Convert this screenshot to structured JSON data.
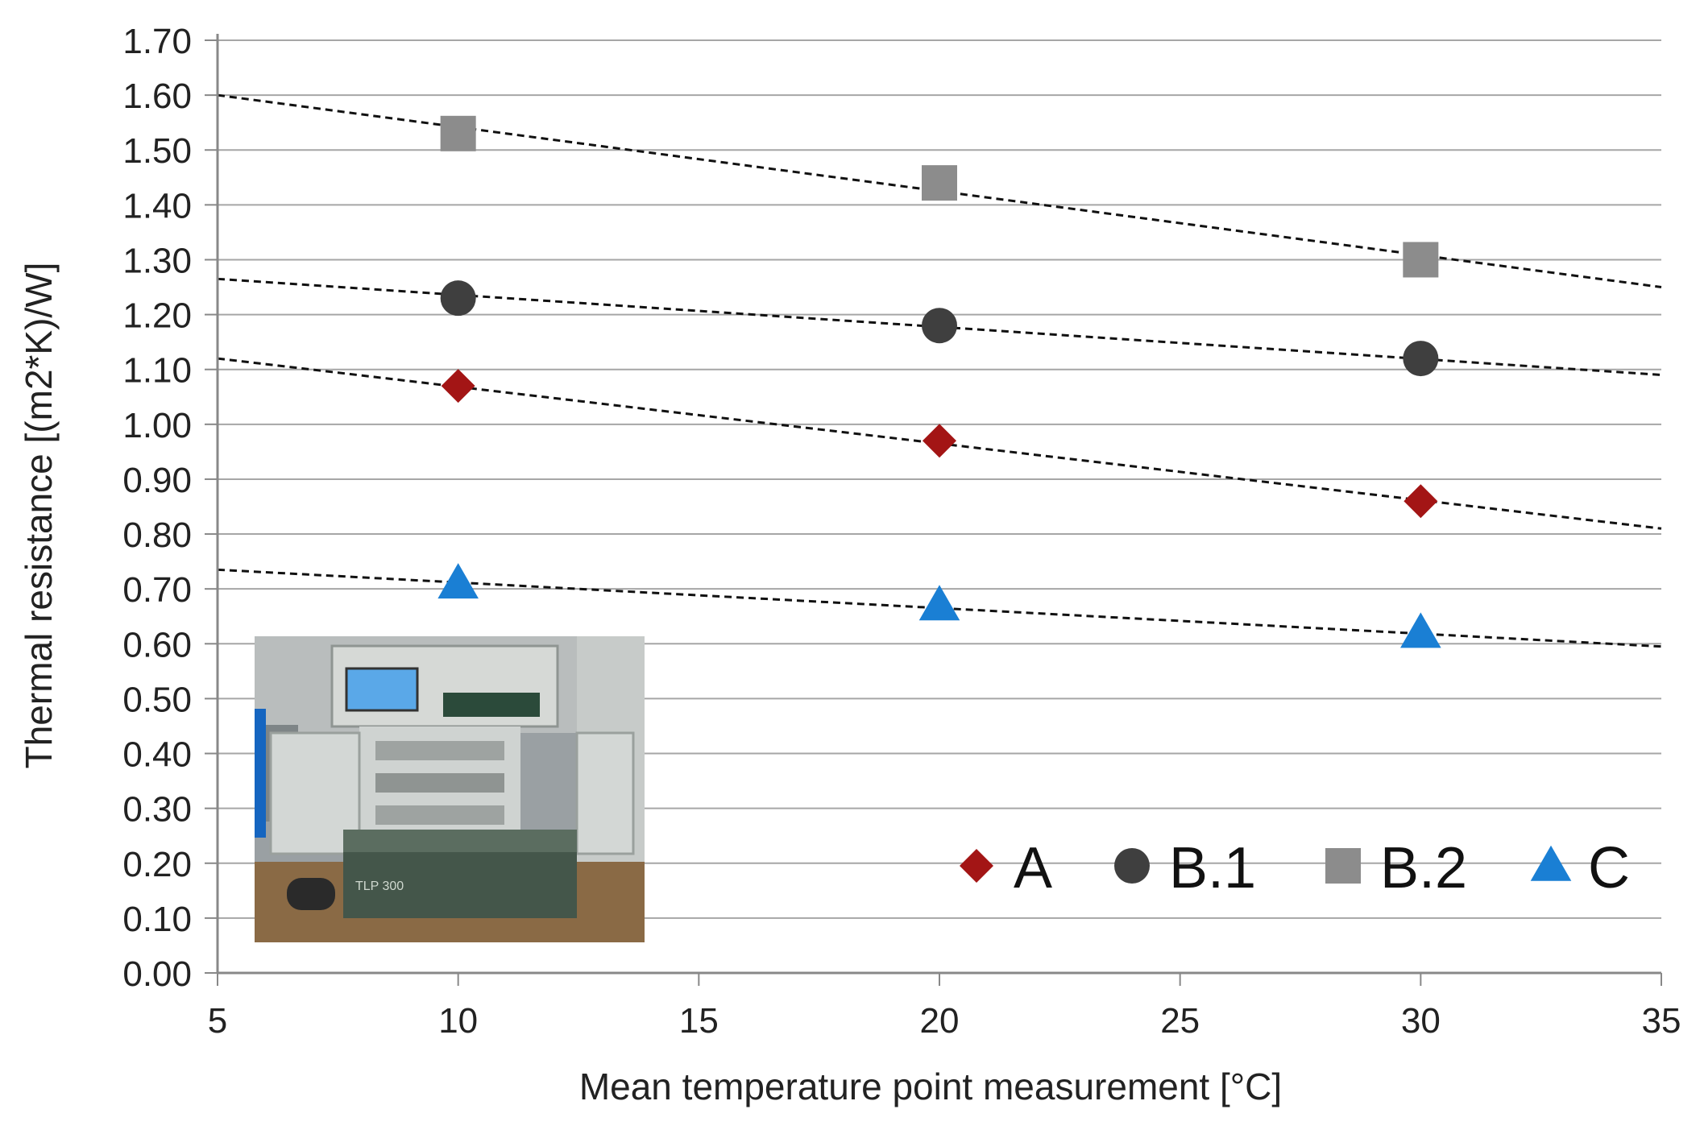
{
  "chart_data": {
    "type": "scatter",
    "title": "",
    "xlabel": "Mean temperature point measurement [°C]",
    "ylabel": "Thermal resistance [(m2*K)/W]",
    "xlim": [
      5,
      35
    ],
    "ylim": [
      0,
      1.7
    ],
    "x_ticks": [
      "5",
      "10",
      "15",
      "20",
      "25",
      "30",
      "35"
    ],
    "y_ticks": [
      "0.00",
      "0.10",
      "0.20",
      "0.30",
      "0.40",
      "0.50",
      "0.60",
      "0.70",
      "0.80",
      "0.90",
      "1.00",
      "1.10",
      "1.20",
      "1.30",
      "1.40",
      "1.50",
      "1.60",
      "1.70"
    ],
    "grid": true,
    "legend_position": "bottom-right",
    "series": [
      {
        "name": "A",
        "marker": "diamond",
        "color": "#a31515",
        "x": [
          10,
          20,
          30
        ],
        "y": [
          1.07,
          0.97,
          0.86
        ],
        "trendline": {
          "x": [
            5,
            35
          ],
          "y": [
            1.12,
            0.81
          ]
        }
      },
      {
        "name": "B.1",
        "marker": "circle",
        "color": "#3f3f3f",
        "x": [
          10,
          20,
          30
        ],
        "y": [
          1.23,
          1.18,
          1.12
        ],
        "trendline": {
          "x": [
            5,
            35
          ],
          "y": [
            1.265,
            1.09
          ]
        }
      },
      {
        "name": "B.2",
        "marker": "square",
        "color": "#8c8c8c",
        "x": [
          10,
          20,
          30
        ],
        "y": [
          1.53,
          1.44,
          1.3
        ],
        "trendline": {
          "x": [
            5,
            35
          ],
          "y": [
            1.6,
            1.25
          ]
        }
      },
      {
        "name": "C",
        "marker": "triangle",
        "color": "#1a7fd4",
        "x": [
          10,
          20,
          30
        ],
        "y": [
          0.71,
          0.67,
          0.62
        ],
        "trendline": {
          "x": [
            5,
            35
          ],
          "y": [
            0.735,
            0.595
          ]
        }
      }
    ],
    "inset_image": "thermal-conductivity-tester-photo"
  }
}
